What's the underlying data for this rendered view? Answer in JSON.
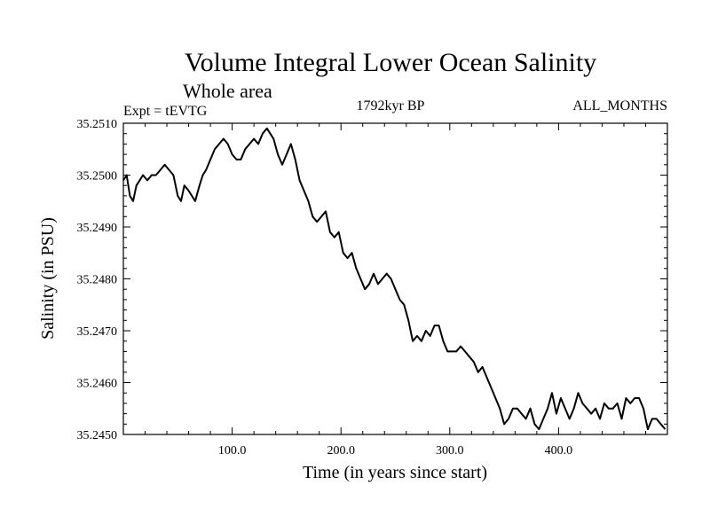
{
  "chart_data": {
    "type": "line",
    "title": "Volume Integral Lower Ocean Salinity",
    "subtitle": "Whole area",
    "experiment_label": "Expt = tEVTG",
    "period_label": "1792kyr BP",
    "months_label": "ALL_MONTHS",
    "xlabel": "Time (in years since start)",
    "ylabel": "Salinity (in PSU)",
    "xlim": [
      0,
      500
    ],
    "ylim": [
      35.245,
      35.251
    ],
    "x_ticks": [
      100,
      200,
      300,
      400
    ],
    "x_tick_labels": [
      "100.0",
      "200.0",
      "300.0",
      "400.0"
    ],
    "y_ticks": [
      35.245,
      35.246,
      35.247,
      35.248,
      35.249,
      35.25,
      35.251
    ],
    "y_tick_labels": [
      "35.2450",
      "35.2460",
      "35.2470",
      "35.2480",
      "35.2490",
      "35.2500",
      "35.2510"
    ],
    "grid": false,
    "series": [
      {
        "name": "Salinity",
        "x": [
          0,
          3,
          6,
          9,
          12,
          15,
          18,
          22,
          26,
          30,
          34,
          38,
          42,
          46,
          50,
          53,
          56,
          60,
          63,
          66,
          70,
          73,
          76,
          80,
          84,
          88,
          92,
          96,
          100,
          104,
          108,
          112,
          116,
          120,
          124,
          128,
          132,
          135,
          138,
          142,
          146,
          150,
          154,
          158,
          162,
          166,
          170,
          174,
          178,
          182,
          186,
          190,
          194,
          198,
          202,
          206,
          210,
          214,
          218,
          222,
          226,
          230,
          234,
          238,
          242,
          246,
          250,
          254,
          258,
          262,
          266,
          270,
          274,
          278,
          282,
          286,
          290,
          294,
          298,
          302,
          306,
          310,
          314,
          318,
          322,
          326,
          330,
          334,
          338,
          342,
          346,
          350,
          354,
          358,
          362,
          366,
          370,
          374,
          378,
          382,
          386,
          390,
          394,
          398,
          402,
          406,
          410,
          414,
          418,
          422,
          426,
          430,
          434,
          438,
          442,
          446,
          450,
          454,
          458,
          462,
          466,
          470,
          474,
          478,
          482,
          486,
          490,
          494,
          498
        ],
        "values": [
          35.2499,
          35.25,
          35.2496,
          35.2495,
          35.2498,
          35.2499,
          35.25,
          35.2499,
          35.25,
          35.25,
          35.2501,
          35.2502,
          35.2501,
          35.25,
          35.2496,
          35.2495,
          35.2498,
          35.2497,
          35.2496,
          35.2495,
          35.2498,
          35.25,
          35.2501,
          35.2503,
          35.2505,
          35.2506,
          35.2507,
          35.2506,
          35.2504,
          35.2503,
          35.2503,
          35.2505,
          35.2506,
          35.2507,
          35.2506,
          35.2508,
          35.2509,
          35.2508,
          35.2507,
          35.2504,
          35.2502,
          35.2504,
          35.2506,
          35.2503,
          35.2499,
          35.2497,
          35.2495,
          35.2492,
          35.2491,
          35.2492,
          35.2493,
          35.2489,
          35.2488,
          35.2489,
          35.2485,
          35.2484,
          35.2485,
          35.2482,
          35.248,
          35.2478,
          35.2479,
          35.2481,
          35.2479,
          35.248,
          35.2481,
          35.248,
          35.2478,
          35.2476,
          35.2475,
          35.2472,
          35.2468,
          35.2469,
          35.2468,
          35.247,
          35.2469,
          35.2471,
          35.2471,
          35.2468,
          35.2466,
          35.2466,
          35.2466,
          35.2467,
          35.2466,
          35.2465,
          35.2464,
          35.2462,
          35.2463,
          35.2461,
          35.2459,
          35.2457,
          35.2455,
          35.2452,
          35.2453,
          35.2455,
          35.2455,
          35.2454,
          35.2453,
          35.2455,
          35.2452,
          35.2451,
          35.2453,
          35.2455,
          35.2458,
          35.2454,
          35.2457,
          35.2455,
          35.2453,
          35.2455,
          35.2458,
          35.2456,
          35.2455,
          35.2454,
          35.2455,
          35.2453,
          35.2456,
          35.2455,
          35.2455,
          35.2456,
          35.2453,
          35.2457,
          35.2456,
          35.2457,
          35.2457,
          35.2455,
          35.2451,
          35.2453,
          35.2453,
          35.2452,
          35.2451
        ]
      }
    ]
  }
}
